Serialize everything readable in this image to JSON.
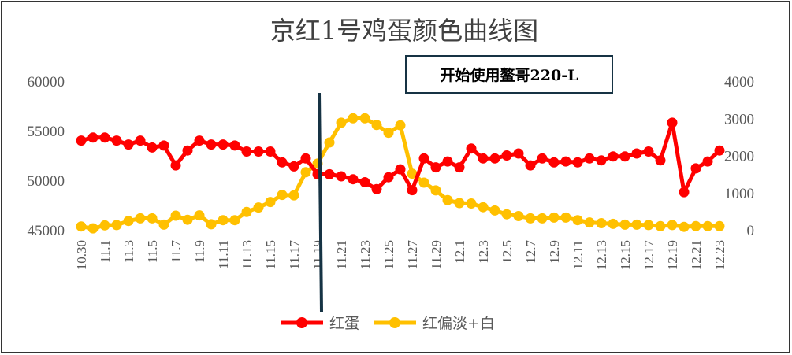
{
  "chart_data": {
    "type": "line",
    "title": "京红1号鸡蛋颜色曲线图",
    "annotation": "开始使用鳌哥220-L",
    "categories": [
      "10.30",
      "10.31",
      "11.1",
      "11.2",
      "11.3",
      "11.4",
      "11.5",
      "11.6",
      "11.7",
      "11.8",
      "11.9",
      "11.10",
      "11.11",
      "11.12",
      "11.13",
      "11.14",
      "11.15",
      "11.16",
      "11.17",
      "11.18",
      "11.19",
      "11.20",
      "11.21",
      "11.22",
      "11.23",
      "11.24",
      "11.25",
      "11.26",
      "11.27",
      "11.28",
      "11.29",
      "11.30",
      "12.1",
      "12.2",
      "12.3",
      "12.4",
      "12.5",
      "12.6",
      "12.7",
      "12.8",
      "12.9",
      "12.10",
      "12.11",
      "12.12",
      "12.13",
      "12.14",
      "12.15",
      "12.16",
      "12.17",
      "12.18",
      "12.19",
      "12.20",
      "12.21",
      "12.22",
      "12.23"
    ],
    "x_tick_labels": [
      "10.30",
      "11.1",
      "11.3",
      "11.5",
      "11.7",
      "11.9",
      "11.11",
      "11.13",
      "11.15",
      "11.17",
      "11.19",
      "11.21",
      "11.23",
      "11.25",
      "11.27",
      "11.29",
      "12.1",
      "12.3",
      "12.5",
      "12.7",
      "12.9",
      "12.11",
      "12.13",
      "12.15",
      "12.17",
      "12.19",
      "12.21",
      "12.23"
    ],
    "left_axis": {
      "min": 45000,
      "max": 60000,
      "ticks": [
        "45000",
        "50000",
        "55000",
        "60000"
      ]
    },
    "right_axis": {
      "min": 0,
      "max": 4000,
      "ticks": [
        "0",
        "1000",
        "2000",
        "3000",
        "4000"
      ]
    },
    "marker_line_category": "11.19",
    "series": [
      {
        "name": "红蛋",
        "axis": "left",
        "color": "#ff0000",
        "values": [
          54000,
          54300,
          54300,
          54000,
          53600,
          54000,
          53300,
          53500,
          51500,
          53000,
          54000,
          53600,
          53600,
          53500,
          52900,
          52900,
          52900,
          51800,
          51400,
          52200,
          50600,
          50600,
          50400,
          50100,
          49800,
          49100,
          50300,
          51100,
          49000,
          52200,
          51300,
          51900,
          51300,
          53200,
          52200,
          52200,
          52500,
          52700,
          51500,
          52200,
          51800,
          51900,
          51800,
          52200,
          52000,
          52400,
          52400,
          52700,
          52900,
          52000,
          55800,
          48800,
          51200,
          51900,
          53000
        ]
      },
      {
        "name": "红偏淡+白",
        "axis": "right",
        "color": "#ffc000",
        "values": [
          90,
          40,
          120,
          130,
          240,
          310,
          310,
          140,
          380,
          270,
          390,
          150,
          260,
          260,
          480,
          600,
          750,
          940,
          930,
          1550,
          1780,
          2350,
          2880,
          3000,
          3000,
          2820,
          2610,
          2810,
          1510,
          1270,
          1060,
          800,
          720,
          710,
          610,
          520,
          420,
          370,
          310,
          310,
          330,
          330,
          260,
          200,
          180,
          160,
          140,
          140,
          130,
          100,
          130,
          80,
          100,
          100,
          100
        ]
      }
    ]
  }
}
